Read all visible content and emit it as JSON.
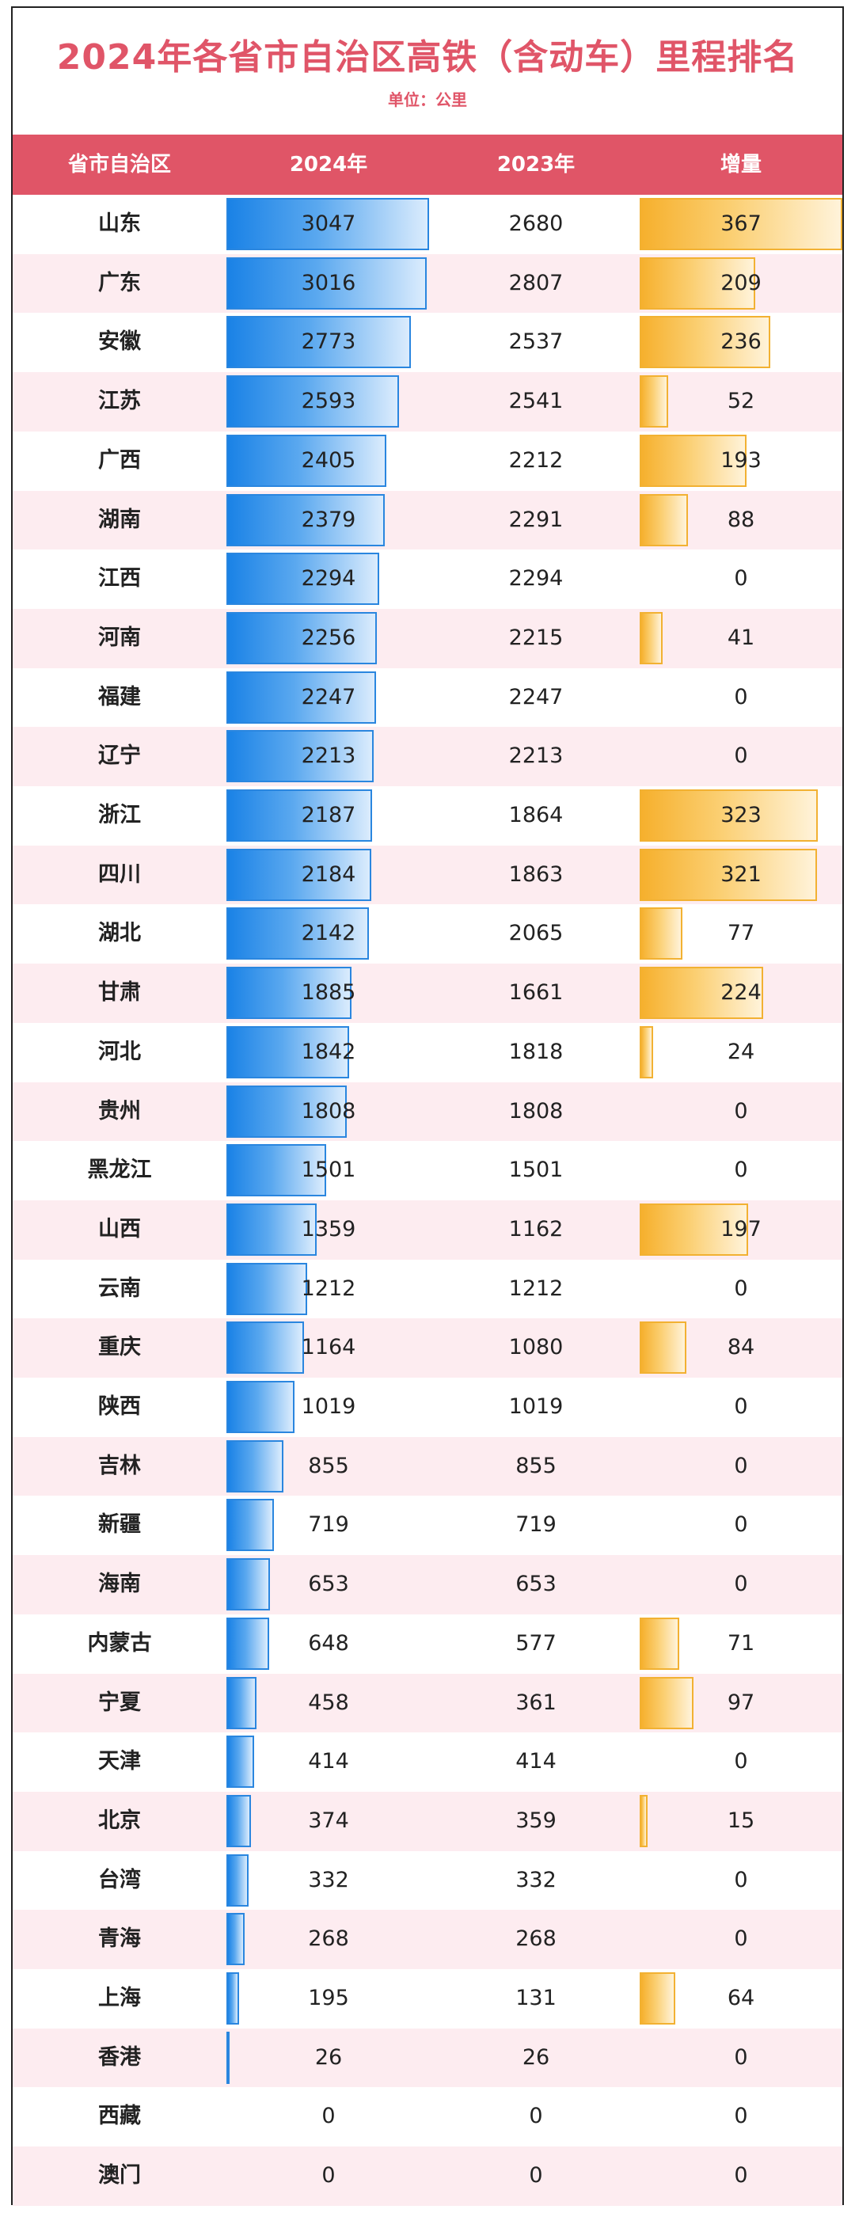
{
  "chart_data": {
    "type": "table",
    "title": "2024年各省市自治区高铁（含动车）里程排名",
    "subtitle": "单位：公里",
    "columns": [
      "省市自治区",
      "2024年",
      "2023年",
      "增量"
    ],
    "rows": [
      {
        "province": "山东",
        "y2024": 3047,
        "y2023": 2680,
        "increase": 367
      },
      {
        "province": "广东",
        "y2024": 3016,
        "y2023": 2807,
        "increase": 209
      },
      {
        "province": "安徽",
        "y2024": 2773,
        "y2023": 2537,
        "increase": 236
      },
      {
        "province": "江苏",
        "y2024": 2593,
        "y2023": 2541,
        "increase": 52
      },
      {
        "province": "广西",
        "y2024": 2405,
        "y2023": 2212,
        "increase": 193
      },
      {
        "province": "湖南",
        "y2024": 2379,
        "y2023": 2291,
        "increase": 88
      },
      {
        "province": "江西",
        "y2024": 2294,
        "y2023": 2294,
        "increase": 0
      },
      {
        "province": "河南",
        "y2024": 2256,
        "y2023": 2215,
        "increase": 41
      },
      {
        "province": "福建",
        "y2024": 2247,
        "y2023": 2247,
        "increase": 0
      },
      {
        "province": "辽宁",
        "y2024": 2213,
        "y2023": 2213,
        "increase": 0
      },
      {
        "province": "浙江",
        "y2024": 2187,
        "y2023": 1864,
        "increase": 323
      },
      {
        "province": "四川",
        "y2024": 2184,
        "y2023": 1863,
        "increase": 321
      },
      {
        "province": "湖北",
        "y2024": 2142,
        "y2023": 2065,
        "increase": 77
      },
      {
        "province": "甘肃",
        "y2024": 1885,
        "y2023": 1661,
        "increase": 224
      },
      {
        "province": "河北",
        "y2024": 1842,
        "y2023": 1818,
        "increase": 24
      },
      {
        "province": "贵州",
        "y2024": 1808,
        "y2023": 1808,
        "increase": 0
      },
      {
        "province": "黑龙江",
        "y2024": 1501,
        "y2023": 1501,
        "increase": 0
      },
      {
        "province": "山西",
        "y2024": 1359,
        "y2023": 1162,
        "increase": 197
      },
      {
        "province": "云南",
        "y2024": 1212,
        "y2023": 1212,
        "increase": 0
      },
      {
        "province": "重庆",
        "y2024": 1164,
        "y2023": 1080,
        "increase": 84
      },
      {
        "province": "陕西",
        "y2024": 1019,
        "y2023": 1019,
        "increase": 0
      },
      {
        "province": "吉林",
        "y2024": 855,
        "y2023": 855,
        "increase": 0
      },
      {
        "province": "新疆",
        "y2024": 719,
        "y2023": 719,
        "increase": 0
      },
      {
        "province": "海南",
        "y2024": 653,
        "y2023": 653,
        "increase": 0
      },
      {
        "province": "内蒙古",
        "y2024": 648,
        "y2023": 577,
        "increase": 71
      },
      {
        "province": "宁夏",
        "y2024": 458,
        "y2023": 361,
        "increase": 97
      },
      {
        "province": "天津",
        "y2024": 414,
        "y2023": 414,
        "increase": 0
      },
      {
        "province": "北京",
        "y2024": 374,
        "y2023": 359,
        "increase": 15
      },
      {
        "province": "台湾",
        "y2024": 332,
        "y2023": 332,
        "increase": 0
      },
      {
        "province": "青海",
        "y2024": 268,
        "y2023": 268,
        "increase": 0
      },
      {
        "province": "上海",
        "y2024": 195,
        "y2023": 131,
        "increase": 64
      },
      {
        "province": "香港",
        "y2024": 26,
        "y2023": 26,
        "increase": 0
      },
      {
        "province": "西藏",
        "y2024": 0,
        "y2023": 0,
        "increase": 0
      },
      {
        "province": "澳门",
        "y2024": 0,
        "y2023": 0,
        "increase": 0
      }
    ],
    "bar_max_2024": 3047,
    "bar_max_increase": 367,
    "colors": {
      "title": "#e05568",
      "header_bg": "#e05567",
      "alt_row_bg": "#fdecf0",
      "bar_2024": "#1a82e6",
      "bar_increase": "#f6b02d"
    }
  }
}
